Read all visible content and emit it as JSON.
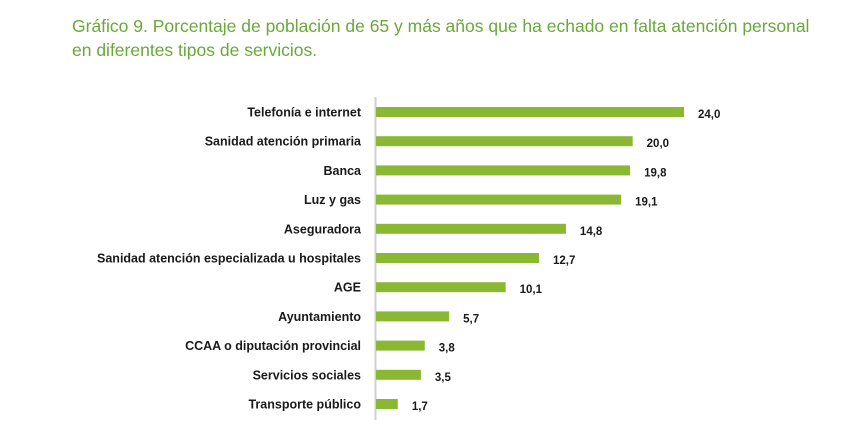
{
  "chart_data": {
    "type": "bar",
    "orientation": "horizontal",
    "title": "Gráfico 9. Porcentaje de población de 65 y más años que ha echado en falta atención personal en diferentes tipos de servicios.",
    "xlabel": "",
    "ylabel": "",
    "categories": [
      "Telefonía e internet",
      "Sanidad atención primaria",
      "Banca",
      "Luz y gas",
      "Aseguradora",
      "Sanidad atención especializada u hospitales",
      "AGE",
      "Ayuntamiento",
      "CCAA o diputación provincial",
      "Servicios sociales",
      "Transporte público"
    ],
    "values": [
      24.0,
      20.0,
      19.8,
      19.1,
      14.8,
      12.7,
      10.1,
      5.7,
      3.8,
      3.5,
      1.7
    ],
    "value_labels": [
      "24,0",
      "20,0",
      "19,8",
      "19,1",
      "14,8",
      "12,7",
      "10,1",
      "5,7",
      "3,8",
      "3,5",
      "1,7"
    ],
    "xlim": [
      0,
      24
    ],
    "grid": false,
    "legend": "none",
    "colors": {
      "bar": "#8ab833",
      "title": "#6aa83a",
      "axis": "#d0d0d0",
      "text": "#1a1a1a"
    }
  }
}
